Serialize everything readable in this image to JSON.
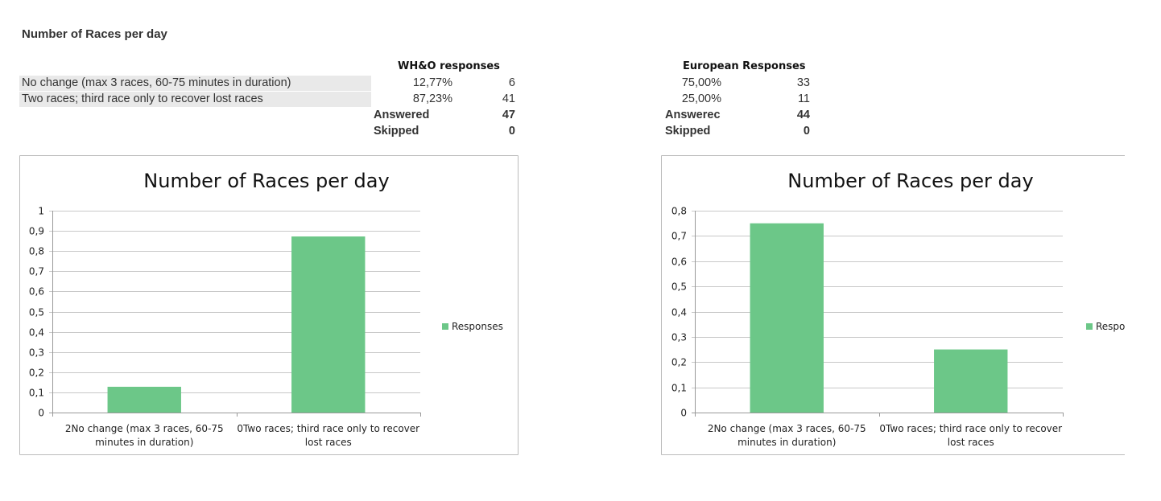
{
  "page": {
    "title": "Number of Races per day",
    "row_labels": [
      "No change (max 3 races, 60-75 minutes in duration)",
      "Two races; third race only to recover lost races"
    ]
  },
  "tables": [
    {
      "header": "WH&O responses",
      "rows": [
        {
          "percent": "12,77%",
          "count": "6"
        },
        {
          "percent": "87,23%",
          "count": "41"
        }
      ],
      "answered_label": "Answered",
      "answered": "47",
      "skipped_label": "Skipped",
      "skipped": "0"
    },
    {
      "header": "European Responses",
      "rows": [
        {
          "percent": "75,00%",
          "count": "33"
        },
        {
          "percent": "25,00%",
          "count": "11"
        }
      ],
      "answered_label": "Answerec",
      "answered": "44",
      "skipped_label": "Skipped",
      "skipped": "0"
    }
  ],
  "colors": {
    "bar": "#6cc788",
    "grid": "#c8c8c8",
    "axis": "#999999",
    "frame": "#bbbbbb"
  },
  "chart_data": [
    {
      "type": "bar",
      "title": "Number of Races per day",
      "categories": [
        "2No change (max 3 races, 60-75 minutes in duration)",
        "0Two races; third race only to recover lost races"
      ],
      "category_lines": [
        [
          "2No change (max 3 races, 60-75",
          "minutes in duration)"
        ],
        [
          "0Two races; third race only to recover",
          "lost races"
        ]
      ],
      "series": [
        {
          "name": "Responses",
          "values": [
            0.1277,
            0.8723
          ]
        }
      ],
      "ylim": [
        0,
        1
      ],
      "yticks": [
        0,
        0.1,
        0.2,
        0.3,
        0.4,
        0.5,
        0.6,
        0.7,
        0.8,
        0.9,
        1
      ],
      "ytick_labels": [
        "0",
        "0,1",
        "0,2",
        "0,3",
        "0,4",
        "0,5",
        "0,6",
        "0,7",
        "0,8",
        "0,9",
        "1"
      ],
      "grid": true,
      "legend": "right"
    },
    {
      "type": "bar",
      "title": "Number of Races per day",
      "categories": [
        "2No change (max 3 races, 60-75 minutes in duration)",
        "0Two races; third race only to recover lost races"
      ],
      "category_lines": [
        [
          "2No change (max 3 races, 60-75",
          "minutes in duration)"
        ],
        [
          "0Two races; third race only to recover",
          "lost races"
        ]
      ],
      "series": [
        {
          "name": "Respo",
          "values": [
            0.75,
            0.25
          ]
        }
      ],
      "ylim": [
        0,
        0.8
      ],
      "yticks": [
        0,
        0.1,
        0.2,
        0.3,
        0.4,
        0.5,
        0.6,
        0.7,
        0.8
      ],
      "ytick_labels": [
        "0",
        "0,1",
        "0,2",
        "0,3",
        "0,4",
        "0,5",
        "0,6",
        "0,7",
        "0,8"
      ],
      "grid": true,
      "legend": "right"
    }
  ]
}
